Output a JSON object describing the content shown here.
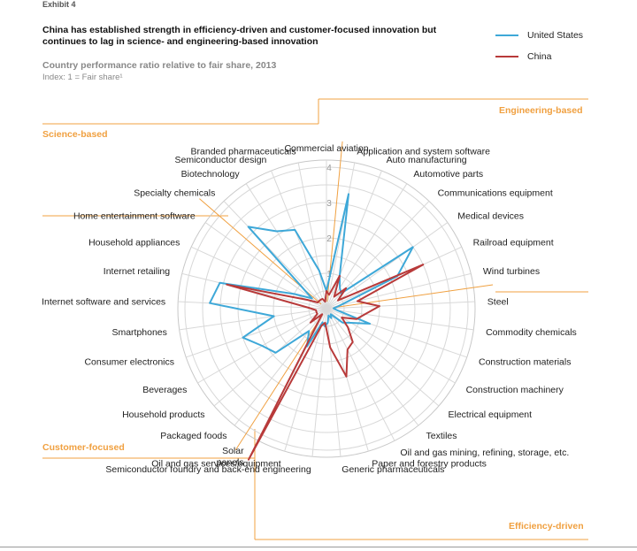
{
  "exhibit_label": "Exhibit 4",
  "title": "China has established strength in efficiency-driven and customer-focused innovation but continues to lag in science- and engineering-based innovation",
  "subtitle": "Country performance ratio relative to fair share, 2013",
  "index_note": "Index: 1 = Fair share¹",
  "colors": {
    "united_states": "#3ea8d8",
    "china": "#b83a3a",
    "accent": "#f0a040",
    "grid": "#d8d8d8"
  },
  "group_labels": {
    "engineering": "Engineering-based",
    "science": "Science-based",
    "customer": "Customer-focused",
    "efficiency": "Efficiency-driven"
  },
  "chart_data": {
    "type": "radar",
    "title": "China has established strength in efficiency-driven and customer-focused innovation but continues to lag in science- and engineering-based innovation",
    "subtitle": "Country performance ratio relative to fair share, 2013",
    "rmax": 4,
    "ticks": [
      "1",
      "2",
      "3",
      "4"
    ],
    "categories": [
      "Commercial aviation",
      "Application and system software",
      "Auto manufacturing",
      "Automotive parts",
      "Communications equipment",
      "Medical devices",
      "Railroad equipment",
      "Wind turbines",
      "Steel",
      "Commodity chemicals",
      "Construction materials",
      "Construction machinery",
      "Electrical equipment",
      "Textiles",
      "Oil and gas mining, refining, storage, etc.",
      "Paper and forestry products",
      "Generic pharmaceuticals",
      "Semiconductor foundry and back-end engineering",
      "Oil and gas services/equipment",
      "Solar panels",
      "Packaged foods",
      "Household products",
      "Beverages",
      "Consumer electronics",
      "Smartphones",
      "Internet software and services",
      "Internet retailing",
      "Household appliances",
      "Home entertainment software",
      "Specialty chemicals",
      "Biotechnology",
      "Semiconductor design",
      "Branded pharmaceuticals"
    ],
    "series": [
      {
        "name": "United States",
        "values": [
          0.5,
          3.3,
          1.0,
          0.7,
          0.6,
          3.0,
          2.2,
          0.4,
          0.2,
          0.3,
          1.3,
          0.8,
          0.6,
          0.2,
          0.3,
          0.2,
          0.4,
          0.5,
          0.4,
          1.2,
          0.8,
          1.9,
          2.1,
          2.5,
          1.5,
          3.3,
          3.1,
          1.0,
          0.5,
          3.2,
          2.6,
          2.4,
          1.1
        ]
      },
      {
        "name": "China",
        "values": [
          0.5,
          0.4,
          1.0,
          0.4,
          0.8,
          0.4,
          3.0,
          0.9,
          1.5,
          1.1,
          0.9,
          0.5,
          0.8,
          1.2,
          1.3,
          2.0,
          1.1,
          0.4,
          0.5,
          4.8,
          0.2,
          0.6,
          0.3,
          0.3,
          0.3,
          0.5,
          2.9,
          0.6,
          0.3,
          0.3,
          0.3,
          0.3,
          0.2
        ]
      }
    ]
  }
}
